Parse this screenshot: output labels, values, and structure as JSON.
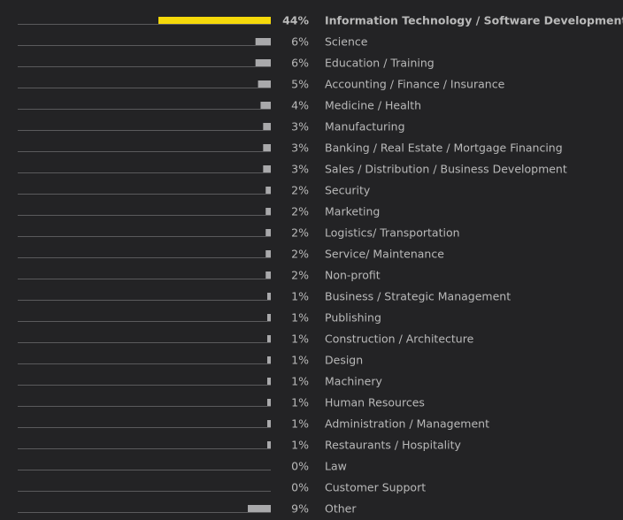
{
  "chart_data": {
    "type": "bar",
    "orientation": "horizontal-right-aligned",
    "categories": [
      "Information Technology / Software Development",
      "Science",
      "Education / Training",
      "Accounting / Finance / Insurance",
      "Medicine / Health",
      "Manufacturing",
      "Banking / Real Estate / Mortgage Financing",
      "Sales / Distribution / Business Development",
      "Security",
      "Marketing",
      "Logistics/ Transportation",
      "Service/ Maintenance",
      "Non-profit",
      "Business / Strategic Management",
      "Publishing",
      "Construction / Architecture",
      "Design",
      "Machinery",
      "Human Resources",
      "Administration / Management",
      "Restaurants / Hospitality",
      "Law",
      "Customer Support",
      "Other"
    ],
    "values": [
      44,
      6,
      6,
      5,
      4,
      3,
      3,
      3,
      2,
      2,
      2,
      2,
      2,
      1,
      1,
      1,
      1,
      1,
      1,
      1,
      1,
      0,
      0,
      9
    ],
    "value_labels": [
      "44%",
      "6%",
      "6%",
      "5%",
      "4%",
      "3%",
      "3%",
      "3%",
      "2%",
      "2%",
      "2%",
      "2%",
      "2%",
      "1%",
      "1%",
      "1%",
      "1%",
      "1%",
      "1%",
      "1%",
      "1%",
      "0%",
      "0%",
      "9%"
    ],
    "highlight_index": 0,
    "title": "",
    "xlabel": "",
    "ylabel": "",
    "xlim": [
      0,
      44
    ],
    "grid": false,
    "legend": "none",
    "colors": {
      "background": "#232325",
      "highlight_bar": "#f5d90a",
      "highlight_text": "#f5d90a",
      "bar": "#a9a9ab",
      "baseline": "#5a5a5c",
      "text": "#b9b9b9"
    }
  }
}
